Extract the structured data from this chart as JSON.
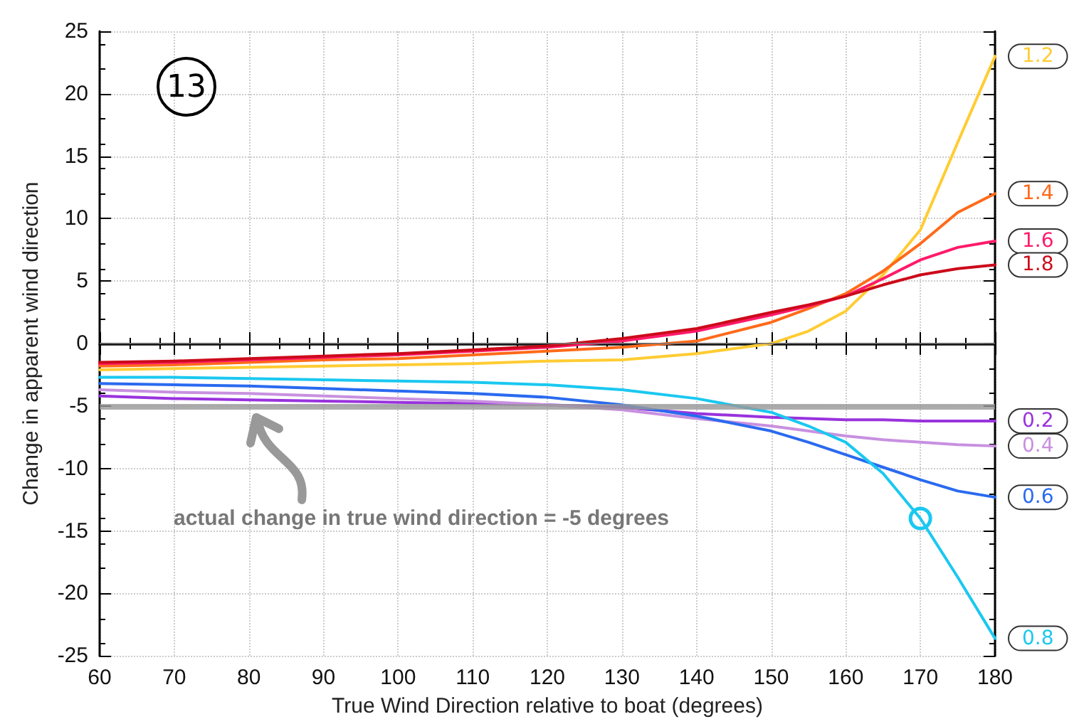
{
  "chart_data": {
    "type": "line",
    "xlabel": "True Wind Direction relative to boat (degrees)",
    "ylabel": "Change in apparent wind direction",
    "annotations": [
      "13"
    ],
    "x": [
      60,
      70,
      80,
      90,
      100,
      110,
      120,
      130,
      140,
      150,
      155,
      160,
      165,
      170,
      175,
      180
    ],
    "series": [
      {
        "name": "1.2",
        "color": "#ffcc33",
        "values": [
          -2.1,
          -2.0,
          -1.9,
          -1.8,
          -1.7,
          -1.6,
          -1.4,
          -1.3,
          -0.8,
          0.0,
          1.0,
          2.6,
          5.5,
          9.1,
          16.1,
          23.0
        ]
      },
      {
        "name": "1.4",
        "color": "#ff6a1a",
        "values": [
          -1.8,
          -1.7,
          -1.5,
          -1.3,
          -1.2,
          -0.9,
          -0.6,
          -0.3,
          0.2,
          1.7,
          2.8,
          4.0,
          5.8,
          8.0,
          10.5,
          12.0
        ]
      },
      {
        "name": "1.6",
        "color": "#ff1a6a",
        "values": [
          -1.6,
          -1.5,
          -1.3,
          -1.1,
          -0.9,
          -0.6,
          -0.3,
          0.2,
          1.0,
          2.3,
          3.0,
          3.8,
          5.2,
          6.7,
          7.7,
          8.2
        ]
      },
      {
        "name": "1.8",
        "color": "#cc0a1a",
        "values": [
          -1.5,
          -1.4,
          -1.2,
          -1.0,
          -0.8,
          -0.5,
          -0.2,
          0.4,
          1.2,
          2.5,
          3.1,
          3.8,
          4.7,
          5.5,
          6.0,
          6.3
        ]
      },
      {
        "name": "0.2",
        "color": "#9933dd",
        "values": [
          -4.2,
          -4.4,
          -4.5,
          -4.6,
          -4.7,
          -4.8,
          -4.9,
          -5.1,
          -5.6,
          -5.9,
          -6.0,
          -6.1,
          -6.1,
          -6.2,
          -6.2,
          -6.2
        ]
      },
      {
        "name": "0.4",
        "color": "#c890e0",
        "values": [
          -3.7,
          -3.9,
          -4.0,
          -4.2,
          -4.4,
          -4.6,
          -4.9,
          -5.3,
          -6.0,
          -6.6,
          -7.0,
          -7.4,
          -7.7,
          -7.9,
          -8.1,
          -8.2
        ]
      },
      {
        "name": "0.6",
        "color": "#2a6aef",
        "values": [
          -3.2,
          -3.3,
          -3.4,
          -3.6,
          -3.8,
          -4.0,
          -4.3,
          -4.9,
          -5.8,
          -7.0,
          -7.9,
          -8.9,
          -9.9,
          -10.9,
          -11.8,
          -12.3
        ]
      },
      {
        "name": "0.8",
        "color": "#1ac8f0",
        "values": [
          -2.7,
          -2.7,
          -2.8,
          -2.9,
          -3.0,
          -3.1,
          -3.3,
          -3.7,
          -4.4,
          -5.5,
          -6.6,
          -7.9,
          -10.4,
          -14.0,
          -18.7,
          -23.6
        ]
      }
    ],
    "ref_lines": [
      {
        "axis": "y",
        "value": 0,
        "color": "#777777"
      },
      {
        "axis": "y",
        "value": -5,
        "color": "#999999",
        "label": "actual change in true wind direction = -5 degrees"
      }
    ],
    "xlim": [
      60,
      180
    ],
    "xticks": [
      60,
      70,
      80,
      90,
      100,
      110,
      120,
      130,
      140,
      150,
      160,
      170,
      180
    ],
    "ylim": [
      -25,
      25
    ],
    "yticks": [
      -25,
      -20,
      -15,
      -10,
      -5,
      0,
      5,
      10,
      15,
      20,
      25
    ],
    "grid": true,
    "legend": false,
    "marker": "none",
    "line_style": "solid"
  }
}
